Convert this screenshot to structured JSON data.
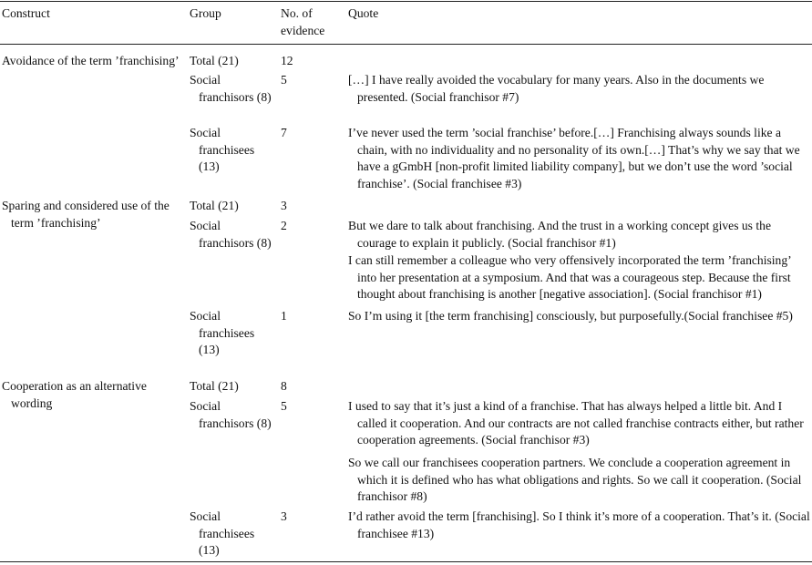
{
  "header": {
    "construct": "Construct",
    "group": "Group",
    "evidence": "No. of evidence",
    "quote": "Quote"
  },
  "rows": [
    {
      "construct": "Avoidance of the term ’franchising’",
      "group": "Total (21)",
      "count": "12"
    },
    {
      "group": "Social franchisors (8)",
      "count": "5",
      "quotes": [
        "[…] I have really avoided the vocabulary for many years. Also in the documents we presented. (Social franchisor #7)"
      ]
    },
    {
      "group": "Social franchisees (13)",
      "count": "7",
      "quotes": [
        "I’ve never used the term ’social franchise’ before.[…] Franchising always sounds like a chain, with no individuality and no personality of its own.[…] That’s why we say that we have a gGmbH [non-profit limited liability company], but we don’t use the word ’social franchise’. (Social franchisee #3)"
      ]
    },
    {
      "construct": "Sparing and considered use of the term ’franchising’",
      "group": "Total (21)",
      "count": "3"
    },
    {
      "group": "Social franchisors (8)",
      "count": "2",
      "quotes": [
        "But we dare to talk about franchising. And the trust in a working concept gives us the courage to explain it publicly. (Social franchisor #1)",
        "I can still remember a colleague who very offensively incorporated the term ’franchising’ into her presentation at a symposium. And that was a courageous step. Because the first thought about franchising is another [negative association]. (Social franchisor #1)"
      ]
    },
    {
      "group": "Social franchisees (13)",
      "count": "1",
      "quotes": [
        "So I’m using it [the term franchising] consciously, but purposefully.(Social franchisee #5)"
      ]
    },
    {
      "construct": "Cooperation as an alternative wording",
      "group": "Total (21)",
      "count": "8"
    },
    {
      "group": "Social franchisors (8)",
      "count": "5",
      "quotes": [
        "I used to say that it’s just a kind of a franchise. That has always helped a little bit. And I called it cooperation. And our contracts are not called franchise contracts either, but rather cooperation agreements. (Social franchisor #3)",
        "So we call our franchisees cooperation partners. We conclude a cooperation agreement in which it is defined who has what obligations and rights. So we call it cooperation. (Social franchisor #8)"
      ]
    },
    {
      "group": "Social franchisees (13)",
      "count": "3",
      "quotes": [
        "I’d rather avoid the term [franchising]. So I think it’s more of a cooperation. That’s it. (Social franchisee #13)"
      ]
    }
  ]
}
